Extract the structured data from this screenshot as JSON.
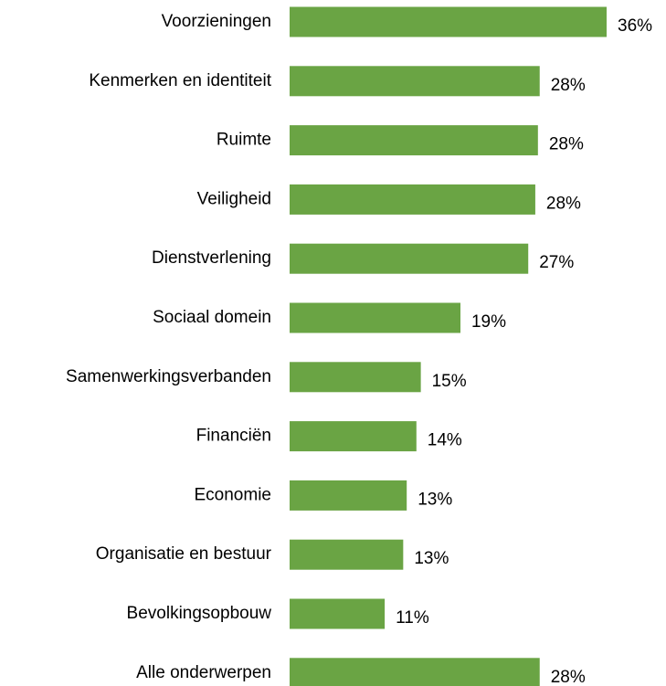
{
  "chart_data": {
    "type": "barh",
    "categories": [
      "Voorzieningen",
      "Kenmerken en identiteit",
      "Ruimte",
      "Veiligheid",
      "Dienstverlening",
      "Sociaal domein",
      "Samenwerkingsverbanden",
      "Financiën",
      "Economie",
      "Organisatie en bestuur",
      "Bevolkingsopbouw",
      "Alle onderwerpen"
    ],
    "values": [
      36,
      28.4,
      28.2,
      27.9,
      27.1,
      19.4,
      14.9,
      14.4,
      13.3,
      12.9,
      10.8,
      28.4
    ],
    "value_labels": [
      "36%",
      "28%",
      "28%",
      "28%",
      "27%",
      "19%",
      "15%",
      "14%",
      "13%",
      "13%",
      "11%",
      "28%"
    ],
    "color": "#6aa444"
  }
}
